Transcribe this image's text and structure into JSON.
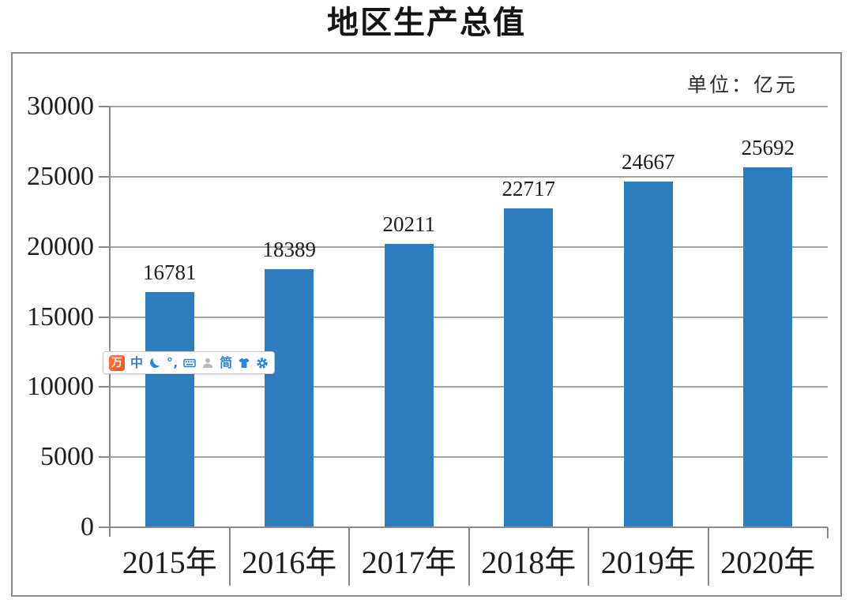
{
  "page": {
    "title": "地区生产总值",
    "unit_label": "单位：亿元"
  },
  "chart_data": {
    "type": "bar",
    "title": "地区生产总值",
    "unit": "单位：亿元",
    "categories": [
      "2015年",
      "2016年",
      "2017年",
      "2018年",
      "2019年",
      "2020年"
    ],
    "values": [
      16781,
      18389,
      20211,
      22717,
      24667,
      25692
    ],
    "xlabel": "",
    "ylabel": "",
    "ylim": [
      0,
      30000
    ],
    "yticks": [
      0,
      5000,
      10000,
      15000,
      20000,
      25000,
      30000
    ],
    "grid": true,
    "legend": "none",
    "bar_color": "#2e7dbf",
    "gridline_color": "#a3a3a3",
    "axis_color": "#8a8a8a",
    "label_color": "#1d1d1d"
  },
  "ime_toolbar": {
    "icons": [
      {
        "name": "wubi-logo-icon",
        "type": "logo",
        "glyph": "万",
        "bg": "#f0501e",
        "color": "#ffffff"
      },
      {
        "name": "chinese-mode-icon",
        "type": "text",
        "glyph": "中",
        "color": "#2e82d9"
      },
      {
        "name": "halfwidth-moon-icon",
        "type": "moon",
        "glyph": "",
        "color": "#2e82d9"
      },
      {
        "name": "punctuation-mode-icon",
        "type": "text",
        "glyph": "°‚",
        "color": "#2e82d9"
      },
      {
        "name": "soft-keyboard-icon",
        "type": "keyboard",
        "glyph": "",
        "color": "#2e82d9"
      },
      {
        "name": "account-person-icon",
        "type": "person",
        "glyph": "",
        "color": "#b9b9b9"
      },
      {
        "name": "simplified-chinese-icon",
        "type": "text",
        "glyph": "简",
        "color": "#2e82d9"
      },
      {
        "name": "skin-tshirt-icon",
        "type": "tshirt",
        "glyph": "",
        "color": "#2e82d9"
      },
      {
        "name": "settings-gear-icon",
        "type": "gear",
        "glyph": "",
        "color": "#2e82d9"
      }
    ]
  }
}
